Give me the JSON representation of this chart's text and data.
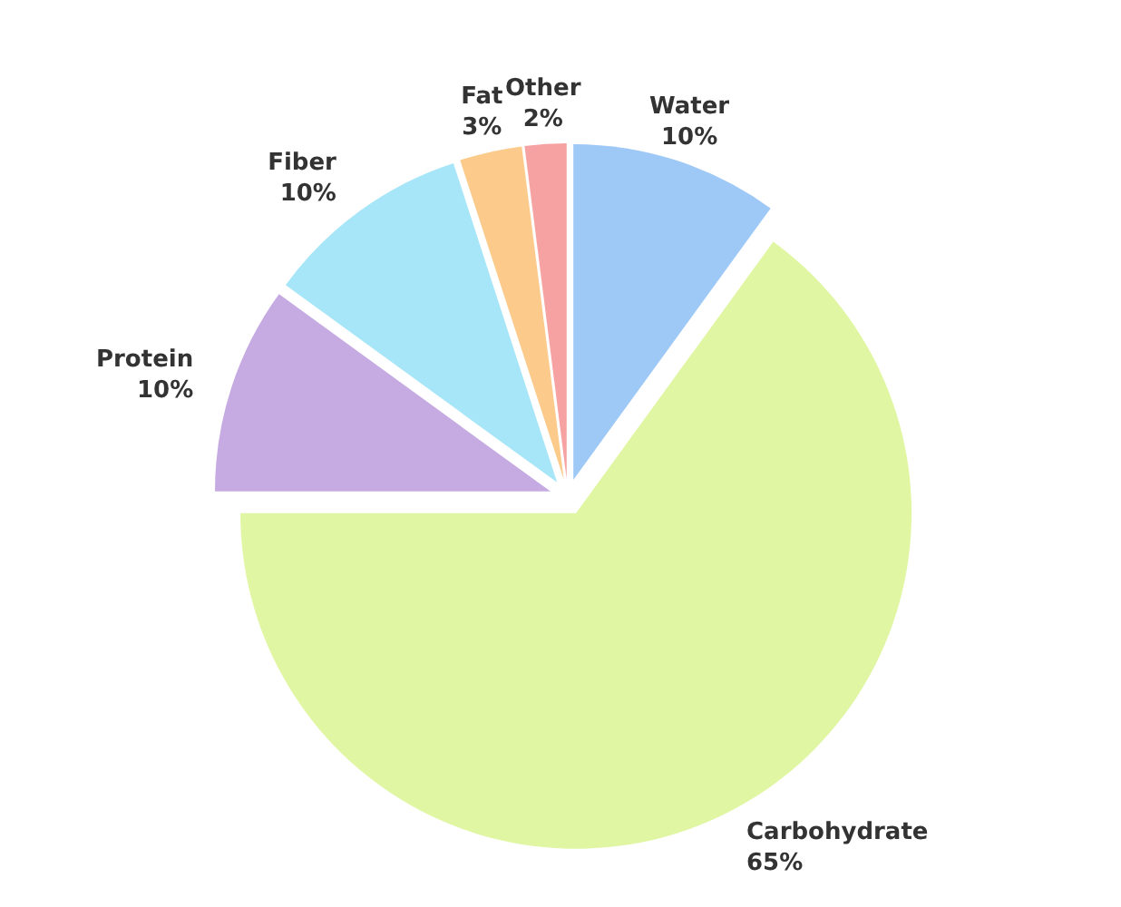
{
  "chart_data": {
    "type": "pie",
    "categories": [
      "Water",
      "Carbohydrate",
      "Protein",
      "Fiber",
      "Fat",
      "Other"
    ],
    "values": [
      10,
      65,
      10,
      10,
      3,
      2
    ],
    "value_labels": [
      "10%",
      "65%",
      "10%",
      "10%",
      "3%",
      "2%"
    ],
    "colors": [
      "#9ec8f6",
      "#e0f6a2",
      "#c6aae2",
      "#a6e6f8",
      "#fccb8c",
      "#f6a2a2"
    ]
  }
}
